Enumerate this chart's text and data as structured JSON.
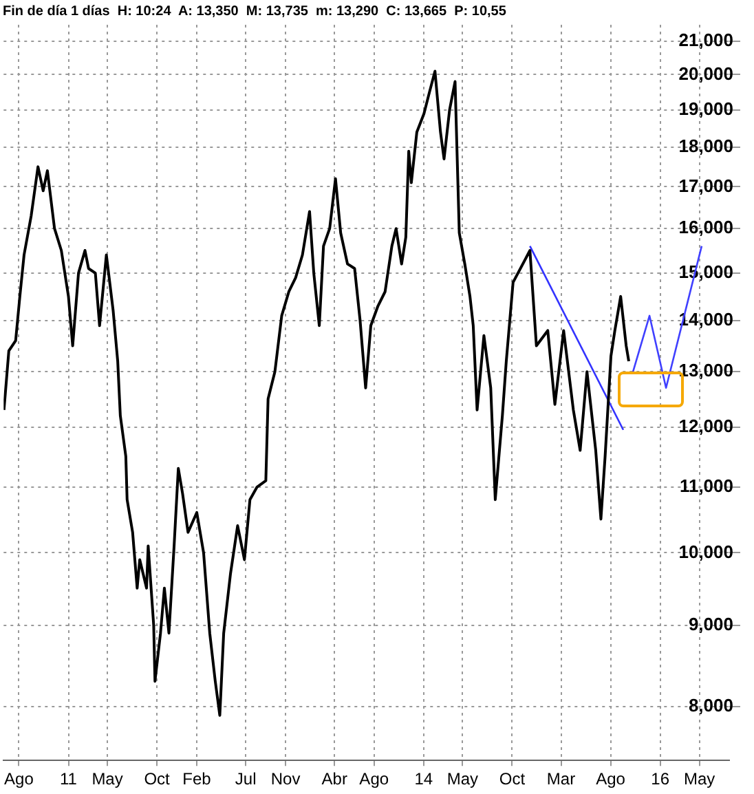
{
  "chart_data": {
    "type": "line",
    "title": "Fin de día 1 días  H: 10:24  A: 13,350  M: 13,735  m: 13,290  C: 13,665  P: 10,55",
    "log": "y",
    "grid": true,
    "legend": false,
    "marker": "none",
    "line_style": "solid",
    "xlim": [
      "2010-06-15",
      "2016-08-01"
    ],
    "xticks": [
      {
        "value": "2010-08",
        "label": "Ago"
      },
      {
        "value": "2011-01",
        "label": "11"
      },
      {
        "value": "2011-05",
        "label": "May"
      },
      {
        "value": "2011-10",
        "label": "Oct"
      },
      {
        "value": "2012-02",
        "label": "Feb"
      },
      {
        "value": "2012-07",
        "label": "Jul"
      },
      {
        "value": "2012-11",
        "label": "Nov"
      },
      {
        "value": "2013-04",
        "label": "Abr"
      },
      {
        "value": "2013-08",
        "label": "Ago"
      },
      {
        "value": "2014-01",
        "label": "14"
      },
      {
        "value": "2014-05",
        "label": "May"
      },
      {
        "value": "2014-10",
        "label": "Oct"
      },
      {
        "value": "2015-03",
        "label": "Mar"
      },
      {
        "value": "2015-08",
        "label": "Ago"
      },
      {
        "value": "2016-01",
        "label": "16"
      },
      {
        "value": "2016-05",
        "label": "May"
      }
    ],
    "ylim": [
      7400,
      21500
    ],
    "yticks": [
      {
        "value": 8000,
        "label": "8,000"
      },
      {
        "value": 9000,
        "label": "9,000"
      },
      {
        "value": 10000,
        "label": "10,000"
      },
      {
        "value": 11000,
        "label": "11,000"
      },
      {
        "value": 12000,
        "label": "12,000"
      },
      {
        "value": 13000,
        "label": "13,000"
      },
      {
        "value": 14000,
        "label": "14,000"
      },
      {
        "value": 15000,
        "label": "15,000"
      },
      {
        "value": 16000,
        "label": "16,000"
      },
      {
        "value": 17000,
        "label": "17,000"
      },
      {
        "value": 18000,
        "label": "18,000"
      },
      {
        "value": 19000,
        "label": "19,000"
      },
      {
        "value": 20000,
        "label": "20,000"
      },
      {
        "value": 21000,
        "label": "21,000"
      }
    ],
    "series": [
      {
        "color": "#000000",
        "x": [
          "2010-06-16",
          "2010-07-01",
          "2010-07-22",
          "2010-08-04",
          "2010-08-17",
          "2010-09-08",
          "2010-09-29",
          "2010-10-15",
          "2010-10-28",
          "2010-11-19",
          "2010-12-10",
          "2011-01-01",
          "2011-01-14",
          "2011-02-01",
          "2011-02-21",
          "2011-03-04",
          "2011-03-25",
          "2011-04-07",
          "2011-04-28",
          "2011-05-19",
          "2011-06-02",
          "2011-06-10",
          "2011-06-27",
          "2011-07-01",
          "2011-07-18",
          "2011-08-01",
          "2011-08-09",
          "2011-08-30",
          "2011-09-04",
          "2011-09-21",
          "2011-09-25",
          "2011-10-12",
          "2011-10-24",
          "2011-11-07",
          "2011-11-23",
          "2011-12-06",
          "2011-12-19",
          "2012-01-05",
          "2012-02-01",
          "2012-02-22",
          "2012-03-12",
          "2012-03-29",
          "2012-04-12",
          "2012-04-24",
          "2012-05-15",
          "2012-06-06",
          "2012-06-27",
          "2012-07-14",
          "2012-08-05",
          "2012-09-01",
          "2012-09-08",
          "2012-09-29",
          "2012-10-20",
          "2012-11-11",
          "2012-12-02",
          "2012-12-23",
          "2013-01-14",
          "2013-01-27",
          "2013-02-13",
          "2013-02-26",
          "2013-03-17",
          "2013-04-04",
          "2013-04-20",
          "2013-05-11",
          "2013-06-02",
          "2013-06-19",
          "2013-07-06",
          "2013-07-22",
          "2013-08-13",
          "2013-09-04",
          "2013-09-25",
          "2013-10-08",
          "2013-10-25",
          "2013-11-07",
          "2013-11-16",
          "2013-11-24",
          "2013-12-11",
          "2014-01-02",
          "2014-01-19",
          "2014-02-05",
          "2014-02-22",
          "2014-03-05",
          "2014-03-22",
          "2014-04-08",
          "2014-04-16",
          "2014-04-21",
          "2014-05-08",
          "2014-05-24",
          "2014-06-03",
          "2014-06-15",
          "2014-07-06",
          "2014-07-27",
          "2014-08-10",
          "2014-09-01",
          "2014-09-13",
          "2014-10-04",
          "2014-11-25",
          "2014-12-15",
          "2015-01-19",
          "2015-02-10",
          "2015-03-09",
          "2015-04-08",
          "2015-04-29",
          "2015-05-20",
          "2015-06-16",
          "2015-07-02",
          "2015-07-15",
          "2015-08-02",
          "2015-08-14",
          "2015-09-01",
          "2015-09-18",
          "2015-09-26"
        ],
        "values": [
          12300,
          13400,
          13600,
          14500,
          15400,
          16300,
          17500,
          16900,
          17400,
          16000,
          15500,
          14500,
          13500,
          15000,
          15500,
          15100,
          15000,
          13900,
          15400,
          14200,
          13200,
          12200,
          11500,
          10800,
          10300,
          9500,
          9900,
          9500,
          10100,
          9000,
          8300,
          8900,
          9500,
          8900,
          10100,
          11300,
          10900,
          10300,
          10600,
          10000,
          8900,
          8300,
          7900,
          8900,
          9700,
          10400,
          9900,
          10800,
          11000,
          11100,
          12500,
          13000,
          14100,
          14600,
          14900,
          15400,
          16400,
          15000,
          13900,
          15600,
          16000,
          17200,
          15900,
          15200,
          15100,
          14000,
          12700,
          13900,
          14300,
          14600,
          15600,
          16000,
          15200,
          15800,
          17900,
          17100,
          18400,
          18900,
          19500,
          20100,
          18400,
          17700,
          19000,
          19800,
          17300,
          15900,
          15200,
          14500,
          13900,
          12300,
          13700,
          12700,
          10800,
          12200,
          13200,
          14800,
          15500,
          13500,
          13800,
          12400,
          13800,
          12300,
          11600,
          13000,
          11600,
          10500,
          11500,
          13300,
          13800,
          14500,
          13500,
          13200
        ]
      },
      {
        "color": "#3333ff",
        "x": [
          "2014-11-25",
          "2015-09-09"
        ],
        "values": [
          15600,
          11950
        ]
      },
      {
        "color": "#4040ff",
        "x": [
          "2015-10-09",
          "2015-11-29",
          "2016-01-19",
          "2016-05-08"
        ],
        "values": [
          13000,
          14100,
          12700,
          15600
        ]
      }
    ]
  }
}
